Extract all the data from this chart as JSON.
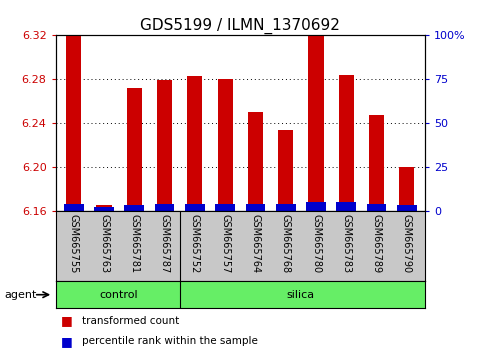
{
  "title": "GDS5199 / ILMN_1370692",
  "samples": [
    "GSM665755",
    "GSM665763",
    "GSM665781",
    "GSM665787",
    "GSM665752",
    "GSM665757",
    "GSM665764",
    "GSM665768",
    "GSM665780",
    "GSM665783",
    "GSM665789",
    "GSM665790"
  ],
  "transformed_count": [
    6.322,
    6.165,
    6.272,
    6.279,
    6.283,
    6.28,
    6.25,
    6.234,
    6.322,
    6.284,
    6.247,
    6.2
  ],
  "percentile_rank_pct": [
    4,
    2,
    3,
    4,
    4,
    4,
    4,
    4,
    5,
    5,
    4,
    3
  ],
  "ylim": [
    6.16,
    6.32
  ],
  "yticks_left": [
    6.16,
    6.2,
    6.24,
    6.28,
    6.32
  ],
  "yticks_right": [
    0,
    25,
    50,
    75,
    100
  ],
  "bar_width": 0.5,
  "red_color": "#cc0000",
  "blue_color": "#0000cc",
  "control_indices": [
    0,
    1,
    2,
    3
  ],
  "silica_indices": [
    4,
    5,
    6,
    7,
    8,
    9,
    10,
    11
  ],
  "group_color": "#66ee66",
  "group_row_label": "agent",
  "legend_items": [
    {
      "label": "transformed count",
      "color": "#cc0000"
    },
    {
      "label": "percentile rank within the sample",
      "color": "#0000cc"
    }
  ],
  "background_color": "#ffffff",
  "tick_area_bg": "#c8c8c8",
  "title_fontsize": 11
}
